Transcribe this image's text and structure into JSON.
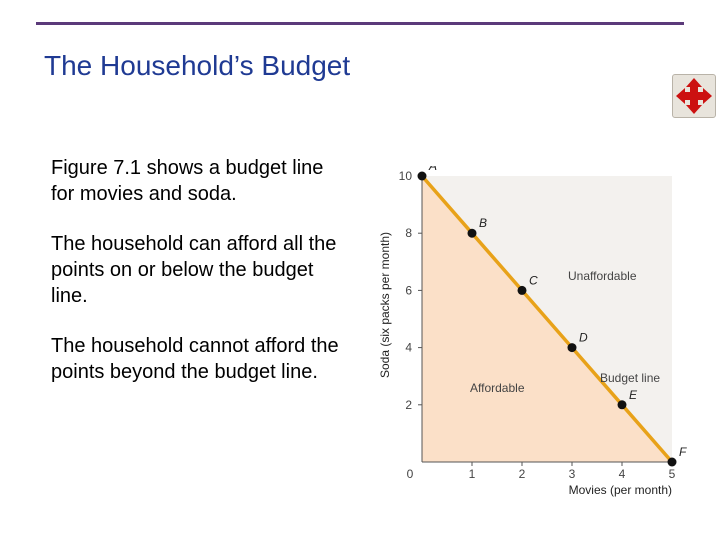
{
  "slide": {
    "title": "The Household’s Budget",
    "paragraphs": [
      "Figure 7.1 shows a budget line for movies and soda.",
      "The household can afford all the points on or below the budget line.",
      "The household cannot afford the points beyond the budget line."
    ]
  },
  "nav": {
    "icon": "move-arrows-icon",
    "color": "#cc1111"
  },
  "chart_data": {
    "type": "line",
    "xlabel": "Movies (per month)",
    "ylabel": "Soda (six packs per month)",
    "xlim": [
      0,
      5
    ],
    "ylim": [
      0,
      10
    ],
    "xticks": [
      0,
      1,
      2,
      3,
      4,
      5
    ],
    "yticks": [
      2,
      4,
      6,
      8,
      10
    ],
    "series": [
      {
        "name": "Budget line",
        "points": [
          {
            "label": "A",
            "x": 0,
            "y": 10
          },
          {
            "label": "B",
            "x": 1,
            "y": 8
          },
          {
            "label": "C",
            "x": 2,
            "y": 6
          },
          {
            "label": "D",
            "x": 3,
            "y": 4
          },
          {
            "label": "E",
            "x": 4,
            "y": 2
          },
          {
            "label": "F",
            "x": 5,
            "y": 0
          }
        ]
      }
    ],
    "annotations": {
      "unaffordable": "Unaffordable",
      "affordable": "Affordable",
      "budget_line": "Budget line"
    },
    "colors": {
      "line": "#e8a219",
      "affordable_fill": "#fbe0c8",
      "unaffordable_fill": "#f3f1ee",
      "point": "#111111"
    },
    "grid": false
  }
}
